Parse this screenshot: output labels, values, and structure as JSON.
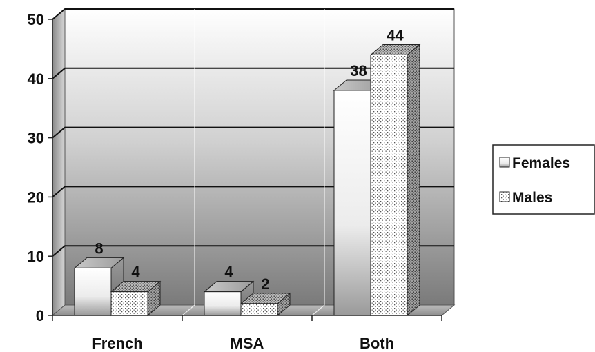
{
  "chart_data": {
    "type": "bar",
    "title": "",
    "xlabel": "",
    "ylabel": "",
    "categories": [
      "French",
      "MSA",
      "Both"
    ],
    "series": [
      {
        "name": "Females",
        "values": [
          8,
          4,
          38
        ]
      },
      {
        "name": "Males",
        "values": [
          4,
          2,
          44
        ]
      }
    ],
    "ylim": [
      0,
      50
    ],
    "yticks": [
      0,
      10,
      20,
      30,
      40,
      50
    ],
    "grid": true,
    "legend": "right",
    "style": "3d-clustered"
  }
}
